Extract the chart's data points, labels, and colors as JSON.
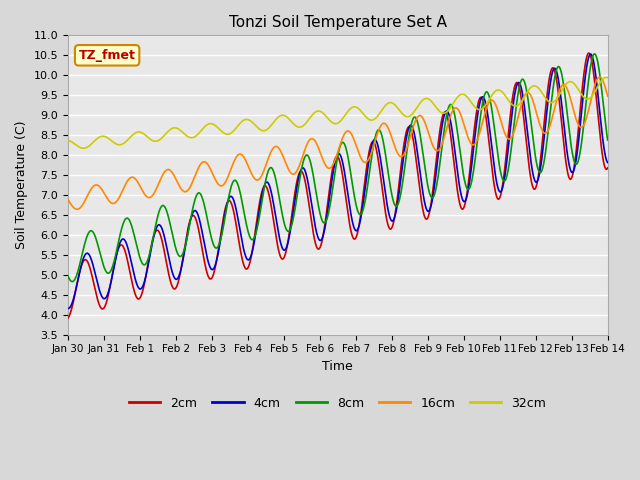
{
  "title": "Tonzi Soil Temperature Set A",
  "xlabel": "Time",
  "ylabel": "Soil Temperature (C)",
  "ylim": [
    3.5,
    11.0
  ],
  "xlim": [
    0,
    15
  ],
  "annotation": "TZ_fmet",
  "annotation_color": "#bb0000",
  "annotation_bg": "#ffffcc",
  "annotation_border": "#cc8800",
  "fig_bg": "#d8d8d8",
  "plot_bg": "#e8e8e8",
  "grid_color": "#ffffff",
  "line_colors": {
    "2cm": "#cc0000",
    "4cm": "#0000cc",
    "8cm": "#009900",
    "16cm": "#ff8800",
    "32cm": "#cccc00"
  },
  "legend_labels": [
    "2cm",
    "4cm",
    "8cm",
    "16cm",
    "32cm"
  ],
  "tick_labels": [
    "Jan 30",
    "Jan 31",
    "Feb 1",
    "Feb 2",
    "Feb 3",
    "Feb 4",
    "Feb 5",
    "Feb 6",
    "Feb 7",
    "Feb 8",
    "Feb 9",
    "Feb 10",
    "Feb 11",
    "Feb 12",
    "Feb 13",
    "Feb 14"
  ],
  "yticks": [
    3.5,
    4.0,
    4.5,
    5.0,
    5.5,
    6.0,
    6.5,
    7.0,
    7.5,
    8.0,
    8.5,
    9.0,
    9.5,
    10.0,
    10.5,
    11.0
  ]
}
